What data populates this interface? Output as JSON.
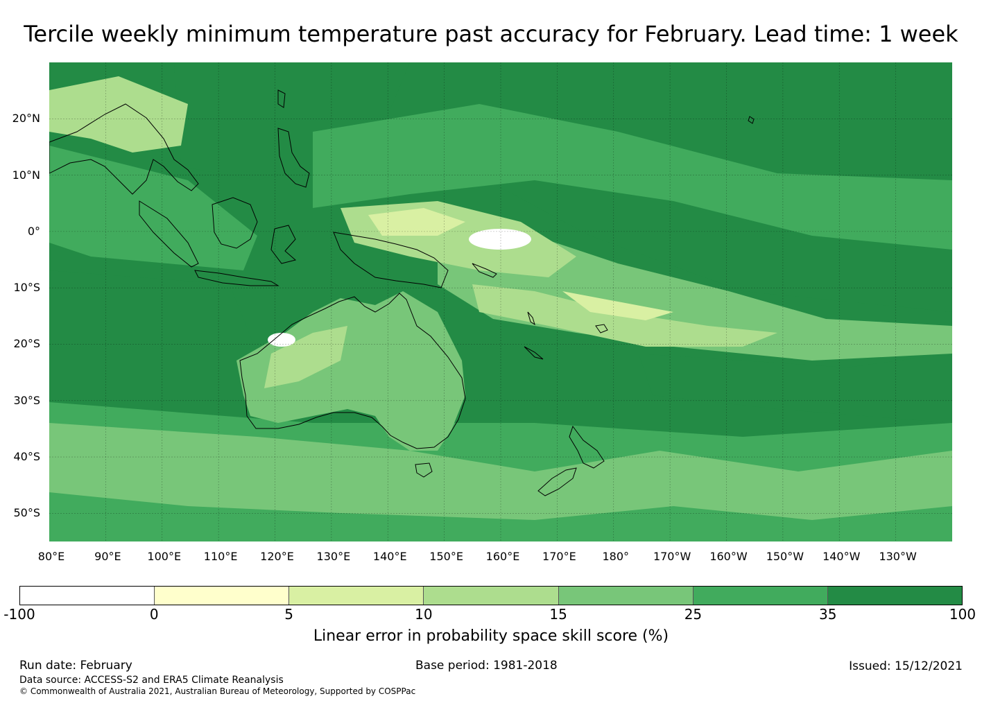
{
  "title": "Tercile weekly minimum temperature past accuracy for February. Lead time: 1 week",
  "map": {
    "lat_range": [
      -55,
      30
    ],
    "lon_range": [
      80,
      240
    ],
    "lat_labels": [
      {
        "lat": 20,
        "text": "20°N"
      },
      {
        "lat": 10,
        "text": "10°N"
      },
      {
        "lat": 0,
        "text": "0°"
      },
      {
        "lat": -10,
        "text": "10°S"
      },
      {
        "lat": -20,
        "text": "20°S"
      },
      {
        "lat": -30,
        "text": "30°S"
      },
      {
        "lat": -40,
        "text": "40°S"
      },
      {
        "lat": -50,
        "text": "50°S"
      }
    ],
    "lon_labels": [
      {
        "lon": 80,
        "text": "80°E"
      },
      {
        "lon": 90,
        "text": "90°E"
      },
      {
        "lon": 100,
        "text": "100°E"
      },
      {
        "lon": 110,
        "text": "110°E"
      },
      {
        "lon": 120,
        "text": "120°E"
      },
      {
        "lon": 130,
        "text": "130°E"
      },
      {
        "lon": 140,
        "text": "140°E"
      },
      {
        "lon": 150,
        "text": "150°E"
      },
      {
        "lon": 160,
        "text": "160°E"
      },
      {
        "lon": 170,
        "text": "170°E"
      },
      {
        "lon": 180,
        "text": "180°"
      },
      {
        "lon": 190,
        "text": "170°W"
      },
      {
        "lon": 200,
        "text": "160°W"
      },
      {
        "lon": 210,
        "text": "150°W"
      },
      {
        "lon": 220,
        "text": "140°W"
      },
      {
        "lon": 230,
        "text": "130°W"
      }
    ]
  },
  "colorbar": {
    "ticks": [
      "-100",
      "0",
      "5",
      "10",
      "15",
      "25",
      "35",
      "100"
    ],
    "colors": [
      "#ffffff",
      "#ffffcc",
      "#d9f0a3",
      "#addd8e",
      "#78c679",
      "#41ab5d",
      "#238b45"
    ],
    "label": "Linear error in probability space skill score (%)"
  },
  "footer": {
    "run_date": "Run date: February",
    "base_period": "Base period: 1981-2018",
    "issued": "Issued: 15/12/2021",
    "data_source": "Data source: ACCESS-S2 and ERA5 Climate Reanalysis",
    "copyright": "© Commonwealth of Australia 2021, Australian Bureau of Meteorology, Supported by COSPPac"
  }
}
